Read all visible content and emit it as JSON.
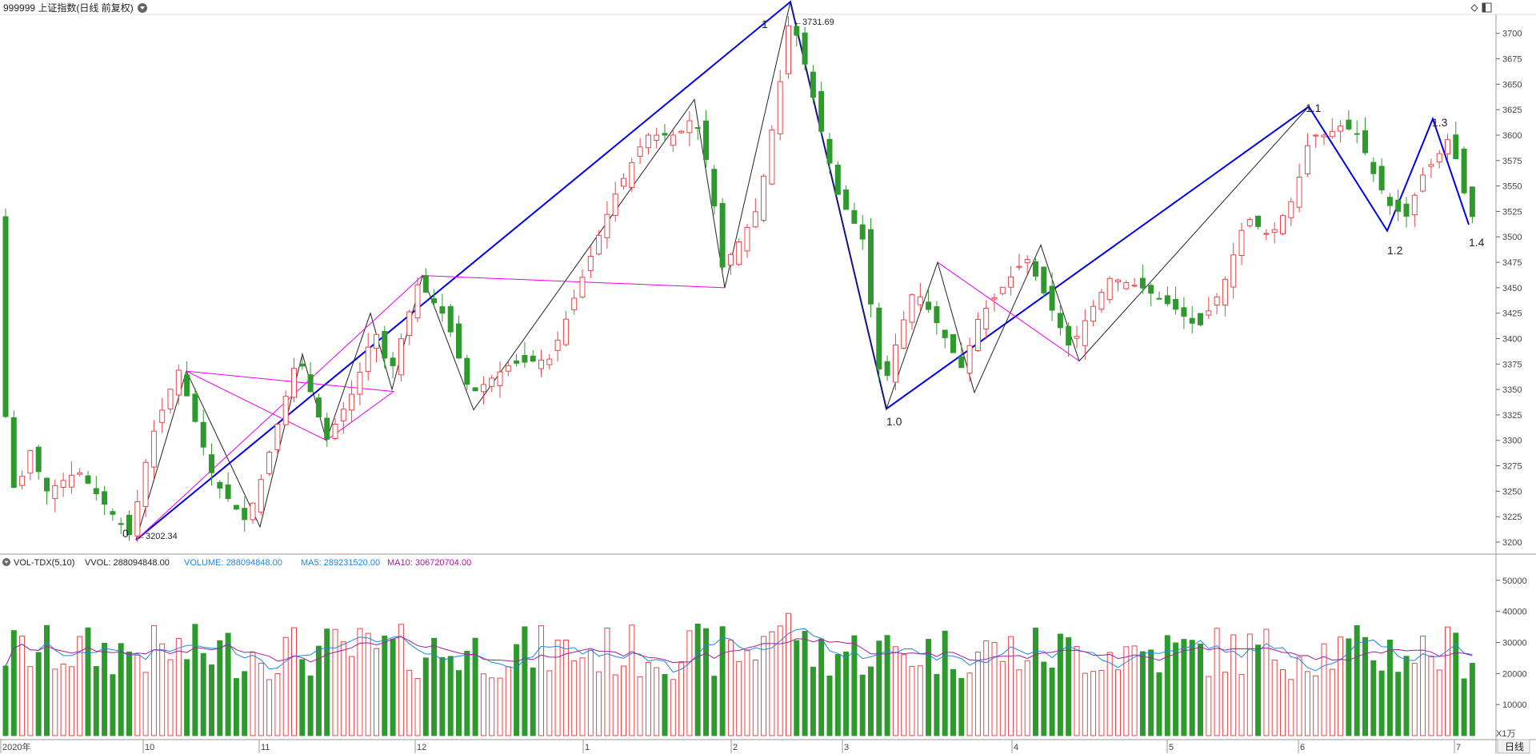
{
  "header": {
    "title": "999999 上证指数(日线 前复权)",
    "icons": [
      "dropdown-icon",
      "diamond-icon",
      "window-icon"
    ]
  },
  "price_axis": {
    "ticks": [
      3200,
      3225,
      3250,
      3275,
      3300,
      3325,
      3350,
      3375,
      3400,
      3425,
      3450,
      3475,
      3500,
      3525,
      3550,
      3575,
      3600,
      3625,
      3650,
      3675,
      3700
    ]
  },
  "volume_panel": {
    "indicator": "VOL-TDX(5,10)",
    "vvol": "VVOL: 288094848.00",
    "volume": "VOLUME: 288094848.00",
    "ma5": "MA5: 289231520.00",
    "ma10": "MA10: 306720704.00",
    "unit": "X1万",
    "ticks": [
      10000,
      20000,
      30000,
      40000,
      50000
    ]
  },
  "time_axis": {
    "labels": [
      "2020年",
      "10",
      "11",
      "12",
      "1",
      "2",
      "3",
      "4",
      "5",
      "6",
      "7"
    ]
  },
  "period_button": "日线",
  "wave_labels": [
    "0",
    "1",
    "1.0",
    "1.1",
    "1.2",
    "1.3",
    "1.4"
  ],
  "price_annotations": [
    "3202.34",
    "3731.69"
  ],
  "colors": {
    "up": "#e8464a",
    "down": "#2e9a2e",
    "wave_main": "#0000ee",
    "wave_minor": "#222222",
    "wave_alt": "#ee00ee",
    "ma5": "#1e88e5",
    "ma10": "#a020a0"
  },
  "chart_data": {
    "type": "candlestick",
    "price_range": [
      3190,
      3735
    ],
    "volume_range": [
      0,
      52000
    ],
    "waves": {
      "main": [
        [
          "0",
          3202.34
        ],
        [
          "1",
          3731.69
        ],
        [
          "1.0",
          3331
        ],
        [
          "1.1",
          3628
        ],
        [
          "1.2",
          3506
        ],
        [
          "1.3",
          3616
        ],
        [
          "1.4",
          3512
        ]
      ]
    },
    "candles_note": "approx. 180 daily candles, Sep 2020 – Jul 2021"
  }
}
